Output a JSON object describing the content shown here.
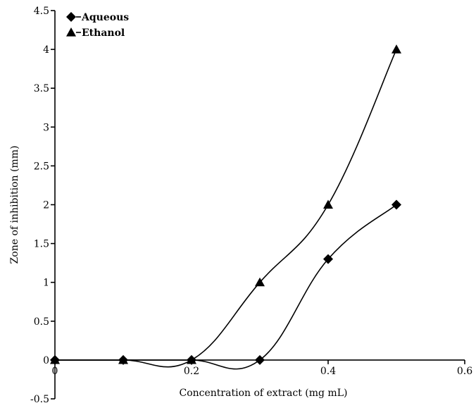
{
  "chart_data": {
    "type": "line",
    "title": "",
    "xlabel": "Concentration of extract (mg mL)",
    "ylabel": "Zone of inhibition (mm)",
    "xlim": [
      0,
      0.6
    ],
    "ylim": [
      -0.5,
      4.5
    ],
    "x_ticks": [
      "0",
      "0.2",
      "0.4",
      "0.6"
    ],
    "y_ticks": [
      "-0.5",
      "0",
      "0.5",
      "1",
      "1.5",
      "2",
      "2.5",
      "3",
      "3.5",
      "4",
      "4.5"
    ],
    "grid": false,
    "legend": "top-left",
    "smoothed": true,
    "series": [
      {
        "name": "Aqueous",
        "marker": "diamond",
        "x": [
          0,
          0.1,
          0.2,
          0.3,
          0.4,
          0.5
        ],
        "values": [
          0,
          0,
          0,
          0,
          1.3,
          2
        ]
      },
      {
        "name": "Ethanol",
        "marker": "triangle",
        "x": [
          0,
          0.1,
          0.2,
          0.3,
          0.4,
          0.5
        ],
        "values": [
          0,
          0,
          0,
          1,
          2,
          4
        ]
      }
    ]
  }
}
